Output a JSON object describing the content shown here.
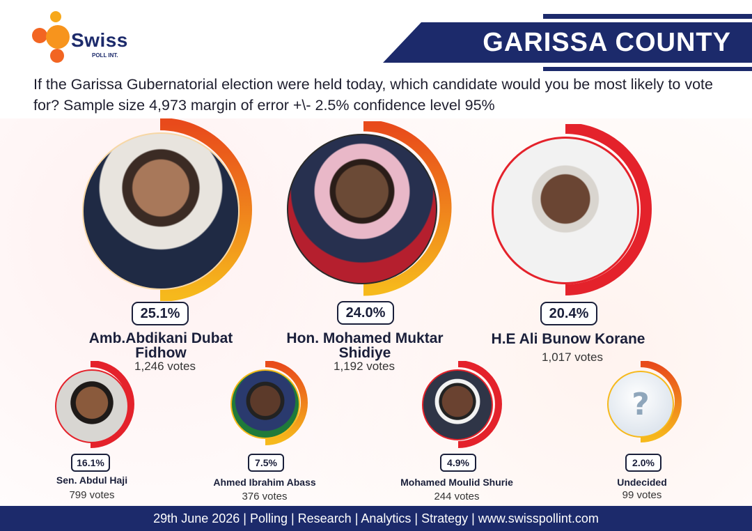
{
  "brand": {
    "name": "Swiss",
    "sub": "POLL INT."
  },
  "banner": {
    "title": "GARISSA COUNTY"
  },
  "question": "If the Garissa Gubernatorial election were held today, which candidate would you be most likely to vote for? Sample size 4,973 margin of error +\\- 2.5% confidence level 95%",
  "colors": {
    "navy": "#1c2a6b",
    "ring_orange": "#f07a12",
    "ring_yellow": "#f6b91c",
    "ring_red": "#e4222b"
  },
  "chart_data": {
    "type": "bar",
    "categories": [
      "Amb.Abdikani Dubat Fidhow",
      "Hon. Mohamed Muktar Shidiye",
      "H.E Ali Bunow Korane",
      "Sen. Abdul Haji",
      "Ahmed Ibrahim Abass",
      "Mohamed Moulid Shurie",
      "Undecided"
    ],
    "values": [
      25.1,
      24.0,
      20.4,
      16.1,
      7.5,
      4.9,
      2.0
    ],
    "votes": [
      1246,
      1192,
      1017,
      799,
      376,
      244,
      99
    ]
  },
  "candidates": [
    {
      "pct": "25.1%",
      "name_l1": "Amb.Abdikani Dubat",
      "name_l2": "Fidhow",
      "votes": "1,246 votes",
      "ring": "orange",
      "photo": "person-photo"
    },
    {
      "pct": "24.0%",
      "name_l1": "Hon. Mohamed Muktar",
      "name_l2": "Shidiye",
      "votes": "1,192 votes",
      "ring": "orange",
      "photo": "person-photo"
    },
    {
      "pct": "20.4%",
      "name_l1": "H.E Ali Bunow Korane",
      "name_l2": "",
      "votes": "1,017 votes",
      "ring": "red",
      "photo": "person-photo"
    },
    {
      "pct": "16.1%",
      "name_l1": "Sen. Abdul Haji",
      "name_l2": "",
      "votes": "799 votes",
      "ring": "red",
      "photo": "person-photo"
    },
    {
      "pct": "7.5%",
      "name_l1": "Ahmed Ibrahim Abass",
      "name_l2": "",
      "votes": "376 votes",
      "ring": "orange",
      "photo": "person-photo"
    },
    {
      "pct": "4.9%",
      "name_l1": "Mohamed Moulid Shurie",
      "name_l2": "",
      "votes": "244 votes",
      "ring": "red",
      "photo": "person-photo"
    },
    {
      "pct": "2.0%",
      "name_l1": "Undecided",
      "name_l2": "",
      "votes": "99 votes",
      "ring": "orange",
      "photo": "question-mark-icon"
    }
  ],
  "footer": {
    "text": "29th June 2026 | Polling | Research | Analytics | Strategy | www.swisspollint.com"
  }
}
